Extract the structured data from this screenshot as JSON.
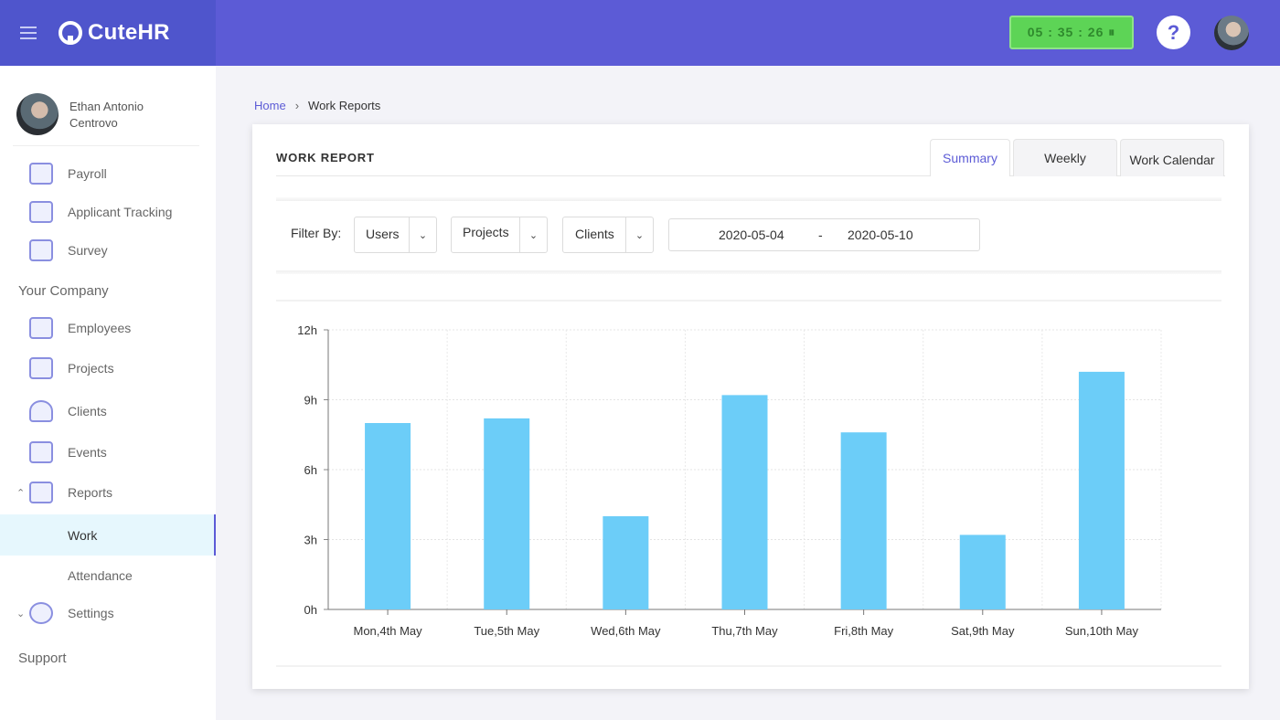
{
  "app": {
    "name": "CuteHR"
  },
  "header": {
    "timer": "05 : 35 : 26 ⏸",
    "help_label": "?"
  },
  "sidebar": {
    "user_name": "Ethan Antonio Centrovo",
    "items_top": [
      {
        "label": "Payroll",
        "icon": "payroll-icon"
      },
      {
        "label": "Applicant Tracking",
        "icon": "applicant-tracking-icon"
      },
      {
        "label": "Survey",
        "icon": "survey-icon"
      }
    ],
    "section_company": "Your Company",
    "items_company": [
      {
        "label": "Employees",
        "icon": "employees-icon"
      },
      {
        "label": "Projects",
        "icon": "projects-icon"
      },
      {
        "label": "Clients",
        "icon": "clients-icon"
      },
      {
        "label": "Events",
        "icon": "events-icon"
      },
      {
        "label": "Reports",
        "icon": "reports-icon"
      }
    ],
    "reports_sub": [
      {
        "label": "Work",
        "active": true
      },
      {
        "label": "Attendance",
        "active": false
      }
    ],
    "settings_label": "Settings",
    "support_label": "Support"
  },
  "breadcrumb": {
    "home": "Home",
    "current": "Work Reports"
  },
  "card": {
    "title": "WORK REPORT",
    "tabs": [
      {
        "label": "Summary",
        "active": true
      },
      {
        "label": "Weekly",
        "active": false
      },
      {
        "label": "Work Calendar",
        "active": false
      }
    ]
  },
  "filters": {
    "label": "Filter By:",
    "users": "Users",
    "projects": "Projects",
    "clients": "Clients",
    "date_start": "2020-05-04",
    "date_sep": "-",
    "date_end": "2020-05-10"
  },
  "chart_data": {
    "type": "bar",
    "categories": [
      "Mon,4th May",
      "Tue,5th May",
      "Wed,6th May",
      "Thu,7th May",
      "Fri,8th May",
      "Sat,9th May",
      "Sun,10th May"
    ],
    "values": [
      8.0,
      8.2,
      4.0,
      9.2,
      7.6,
      3.2,
      10.2
    ],
    "y_ticks": [
      "0h",
      "3h",
      "6h",
      "9h",
      "12h"
    ],
    "y_tick_values": [
      0,
      3,
      6,
      9,
      12
    ],
    "ylim": [
      0,
      12
    ],
    "grid": true,
    "bar_color": "#6ccdf8"
  },
  "colors": {
    "accent": "#5c5bd6",
    "timer_bg": "#5dd456"
  }
}
